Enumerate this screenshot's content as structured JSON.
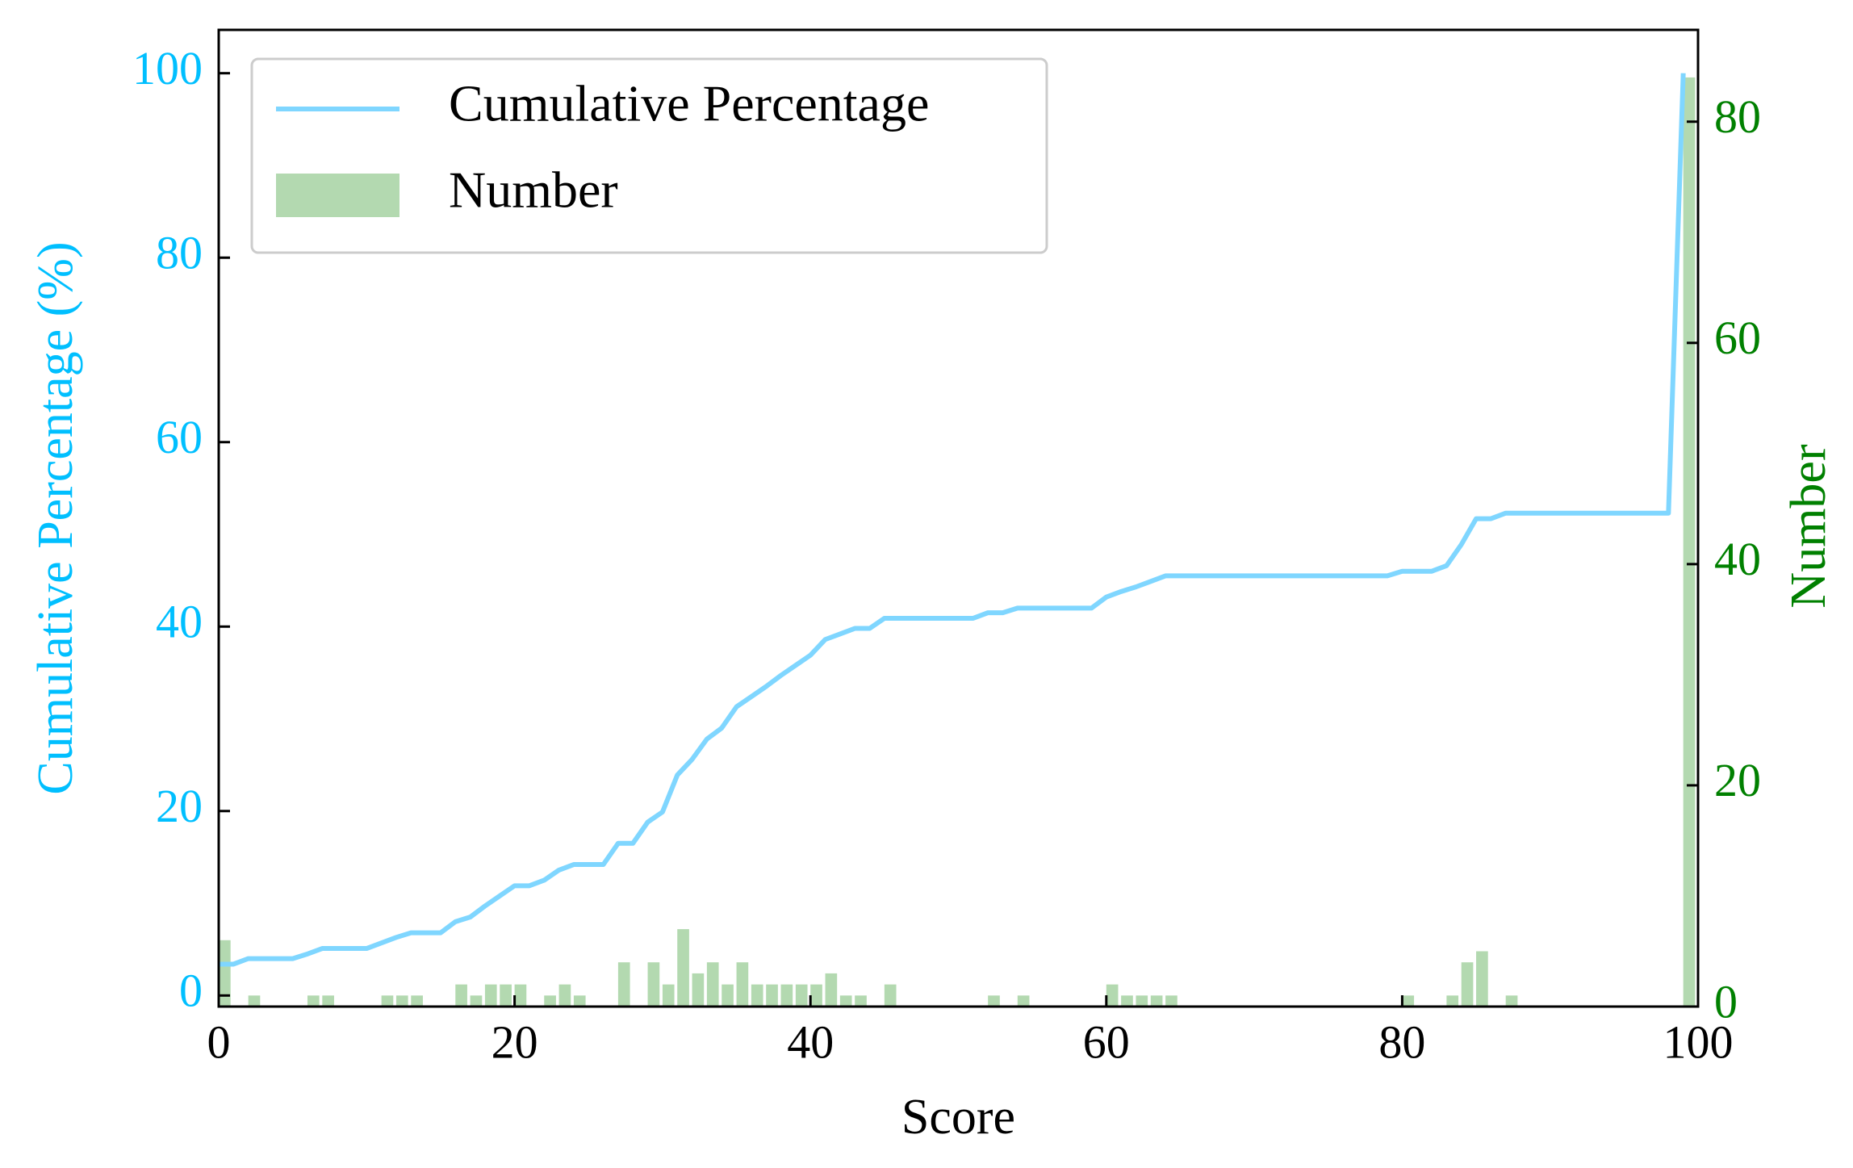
{
  "chart_data": {
    "type": "combo",
    "xlabel": "Score",
    "ylabel": "Cumulative Percentage (%)",
    "y2label": "Number",
    "x": [
      0,
      1,
      2,
      3,
      4,
      5,
      6,
      7,
      8,
      9,
      10,
      11,
      12,
      13,
      14,
      15,
      16,
      17,
      18,
      19,
      20,
      21,
      22,
      23,
      24,
      25,
      26,
      27,
      28,
      29,
      30,
      31,
      32,
      33,
      34,
      35,
      36,
      37,
      38,
      39,
      40,
      41,
      42,
      43,
      44,
      45,
      46,
      47,
      48,
      49,
      50,
      51,
      52,
      53,
      54,
      55,
      56,
      57,
      58,
      59,
      60,
      61,
      62,
      63,
      64,
      65,
      66,
      67,
      68,
      69,
      70,
      71,
      72,
      73,
      74,
      75,
      76,
      77,
      78,
      79,
      80,
      81,
      82,
      83,
      84,
      85,
      86,
      87,
      88,
      89,
      90,
      91,
      92,
      93,
      94,
      95,
      96,
      97,
      98,
      99
    ],
    "series": [
      {
        "name": "Cumulative Percentage",
        "type": "line",
        "color": "#7fd6ff",
        "axis": "y",
        "values": [
          3.4,
          3.4,
          4.0,
          4.0,
          4.0,
          4.0,
          4.5,
          5.1,
          5.1,
          5.1,
          5.1,
          5.7,
          6.3,
          6.8,
          6.8,
          6.8,
          8.0,
          8.5,
          9.7,
          10.8,
          11.9,
          11.9,
          12.5,
          13.6,
          14.2,
          14.2,
          14.2,
          16.5,
          16.5,
          18.8,
          19.9,
          23.9,
          25.6,
          27.8,
          29.0,
          31.3,
          32.4,
          33.5,
          34.7,
          35.8,
          36.9,
          38.6,
          39.2,
          39.8,
          39.8,
          40.9,
          40.9,
          40.9,
          40.9,
          40.9,
          40.9,
          40.9,
          41.5,
          41.5,
          42.0,
          42.0,
          42.0,
          42.0,
          42.0,
          42.0,
          43.2,
          43.8,
          44.3,
          44.9,
          45.5,
          45.5,
          45.5,
          45.5,
          45.5,
          45.5,
          45.5,
          45.5,
          45.5,
          45.5,
          45.5,
          45.5,
          45.5,
          45.5,
          45.5,
          45.5,
          46.0,
          46.0,
          46.0,
          46.6,
          48.9,
          51.7,
          51.7,
          52.3,
          52.3,
          52.3,
          52.3,
          52.3,
          52.3,
          52.3,
          52.3,
          52.3,
          52.3,
          52.3,
          52.3,
          100.0
        ]
      },
      {
        "name": "Number",
        "type": "bar",
        "color": "#b3d9b0",
        "axis": "y2",
        "values": [
          6,
          0,
          1,
          0,
          0,
          0,
          1,
          1,
          0,
          0,
          0,
          1,
          1,
          1,
          0,
          0,
          2,
          1,
          2,
          2,
          2,
          0,
          1,
          2,
          1,
          0,
          0,
          4,
          0,
          4,
          2,
          7,
          3,
          4,
          2,
          4,
          2,
          2,
          2,
          2,
          2,
          3,
          1,
          1,
          0,
          2,
          0,
          0,
          0,
          0,
          0,
          0,
          1,
          0,
          1,
          0,
          0,
          0,
          0,
          0,
          2,
          1,
          1,
          1,
          1,
          0,
          0,
          0,
          0,
          0,
          0,
          0,
          0,
          0,
          0,
          0,
          0,
          0,
          0,
          0,
          1,
          0,
          0,
          1,
          4,
          5,
          0,
          1,
          0,
          0,
          0,
          0,
          0,
          0,
          0,
          0,
          0,
          0,
          0,
          84
        ]
      }
    ],
    "xlim": [
      0,
      100
    ],
    "xticks": [
      0,
      20,
      40,
      60,
      80,
      100
    ],
    "ylim": [
      -1.2,
      104.7
    ],
    "yticks": [
      0,
      20,
      40,
      60,
      80,
      100
    ],
    "y2lim": [
      0,
      88.3
    ],
    "y2ticks": [
      0,
      20,
      40,
      60,
      80
    ],
    "ylabel_color": "#00bfff",
    "y2label_color": "#008000",
    "legend": "upper left"
  }
}
